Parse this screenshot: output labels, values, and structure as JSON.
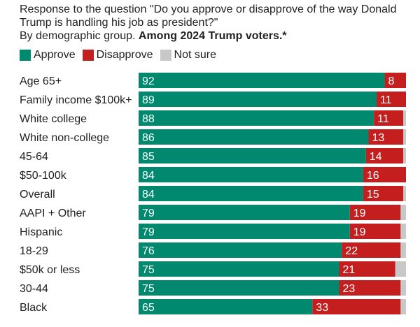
{
  "chart_data": {
    "type": "bar",
    "orientation": "horizontal",
    "stacked": true,
    "title": "Response to the question \"Do you approve or disapprove of the way Donald Trump is handling his job as president?\"",
    "subtitle": "By demographic group.",
    "subtitle_bold": "Among 2024 Trump voters.*",
    "xlim": [
      0,
      100
    ],
    "grid": false,
    "legend_position": "top-left",
    "categories": [
      "Age 65+",
      "Family income $100k+",
      "White college",
      "White non-college",
      "45-64",
      "$50-100k",
      "Overall",
      "AAPI + Other",
      "Hispanic",
      "18-29",
      "$50k or less",
      "30-44",
      "Black"
    ],
    "series": [
      {
        "name": "Approve",
        "color": "#00896f",
        "values": [
          92,
          89,
          88,
          86,
          85,
          84,
          84,
          79,
          79,
          76,
          75,
          75,
          65
        ]
      },
      {
        "name": "Disapprove",
        "color": "#c41e1e",
        "values": [
          8,
          11,
          11,
          13,
          14,
          16,
          15,
          19,
          19,
          22,
          21,
          23,
          33
        ]
      },
      {
        "name": "Not sure",
        "color": "#c8c8c8",
        "values": [
          0,
          0,
          1,
          1,
          1,
          0,
          1,
          2,
          2,
          2,
          4,
          2,
          2
        ]
      }
    ]
  }
}
